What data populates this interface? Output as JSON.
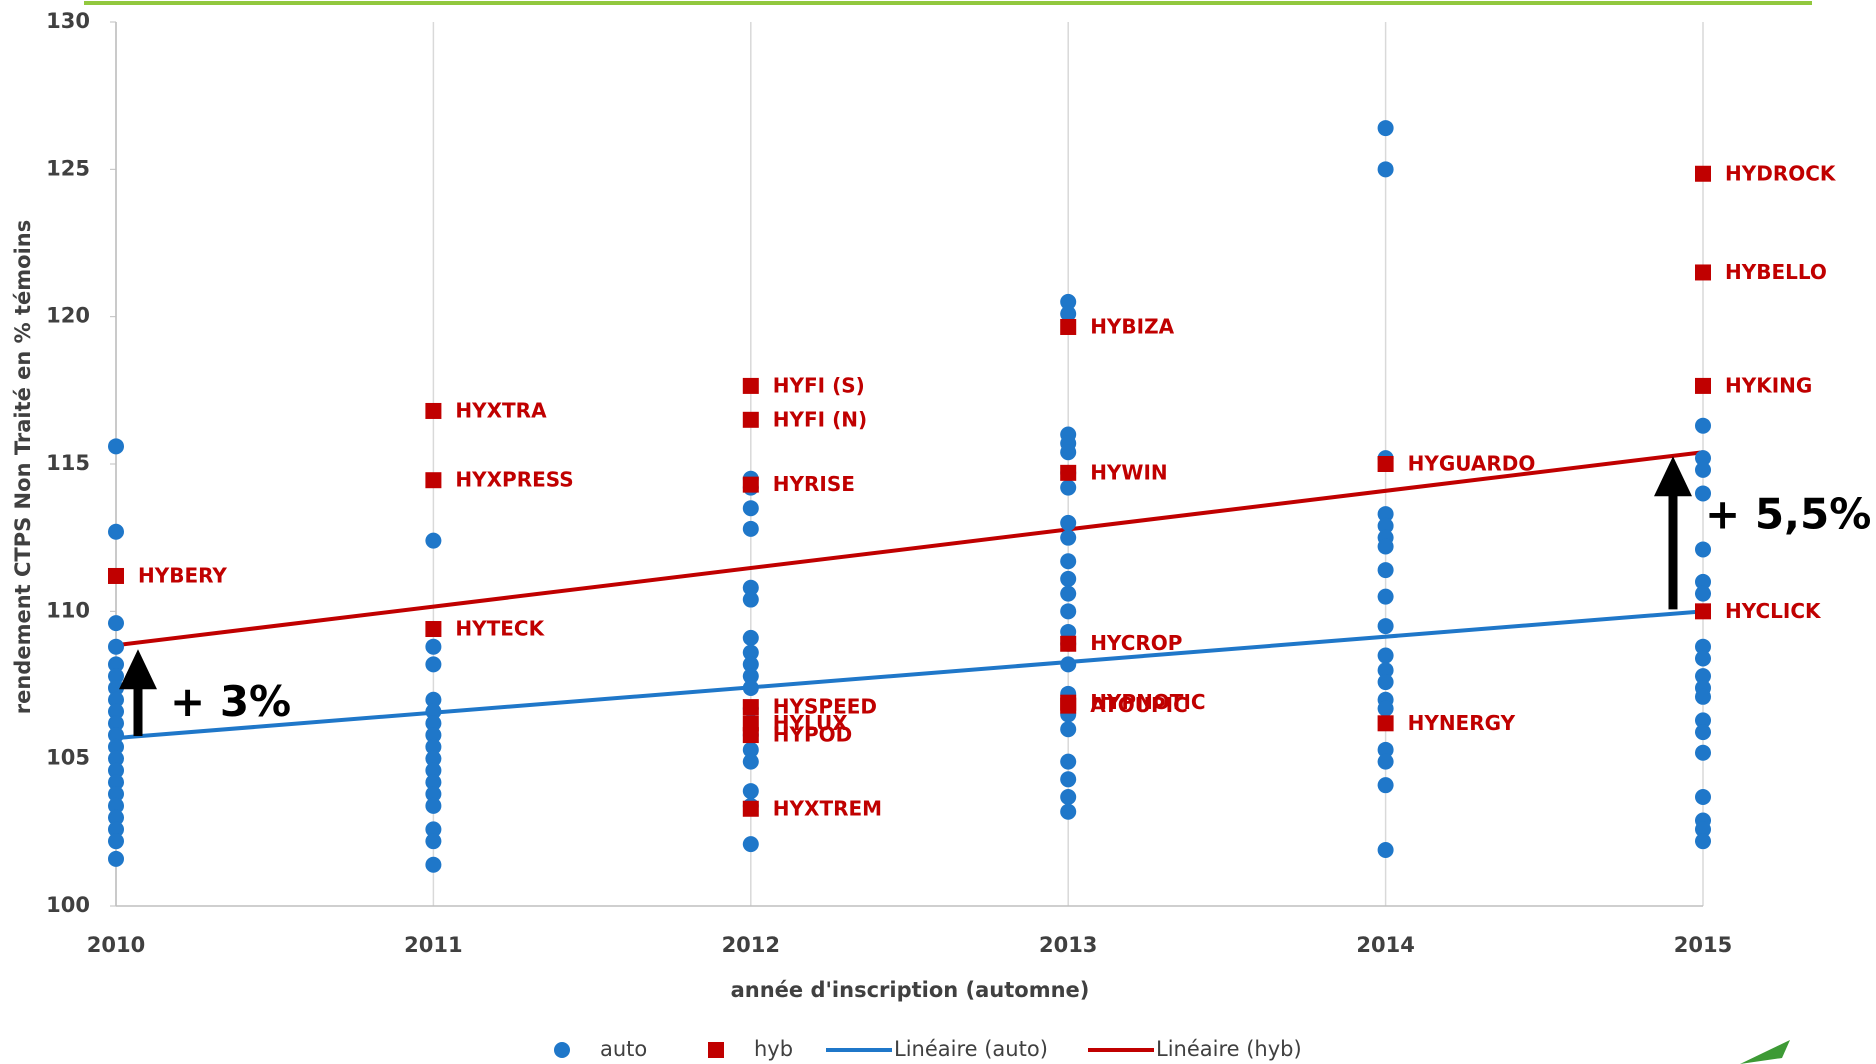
{
  "chart_data": {
    "type": "scatter",
    "xlabel": "année d'inscription (automne)",
    "ylabel": "rendement CTPS Non Traité en % témoins",
    "xlim": [
      2010,
      2015
    ],
    "xticks": [
      2010,
      2011,
      2012,
      2013,
      2014,
      2015
    ],
    "ylim": [
      100,
      130
    ],
    "yticks": [
      100,
      105,
      110,
      115,
      120,
      125,
      130
    ],
    "grid": true,
    "legend": "bottom",
    "series": [
      {
        "name": "auto",
        "color": "#1f77c9",
        "marker": "circle",
        "x": [
          2010,
          2010,
          2010,
          2010,
          2010,
          2010,
          2010,
          2010,
          2010,
          2010,
          2010,
          2010,
          2010,
          2010,
          2010,
          2010,
          2010,
          2010,
          2010,
          2010,
          2010,
          2011,
          2011,
          2011,
          2011,
          2011,
          2011,
          2011,
          2011,
          2011,
          2011,
          2011,
          2011,
          2011,
          2011,
          2011,
          2011,
          2012,
          2012,
          2012,
          2012,
          2012,
          2012,
          2012,
          2012,
          2012,
          2012,
          2012,
          2012,
          2012,
          2012,
          2012,
          2012,
          2012,
          2012,
          2013,
          2013,
          2013,
          2013,
          2013,
          2013,
          2013,
          2013,
          2013,
          2013,
          2013,
          2013,
          2013,
          2013,
          2013,
          2013,
          2013,
          2013,
          2013,
          2013,
          2013,
          2013,
          2013,
          2014,
          2014,
          2014,
          2014,
          2014,
          2014,
          2014,
          2014,
          2014,
          2014,
          2014,
          2014,
          2014,
          2014,
          2014,
          2014,
          2014,
          2014,
          2014,
          2015,
          2015,
          2015,
          2015,
          2015,
          2015,
          2015,
          2015,
          2015,
          2015,
          2015,
          2015,
          2015,
          2015,
          2015,
          2015,
          2015,
          2015,
          2015
        ],
        "values": [
          115.6,
          112.7,
          109.6,
          108.8,
          108.2,
          107.8,
          107.4,
          107.0,
          106.6,
          106.2,
          105.8,
          105.4,
          105.0,
          104.6,
          104.2,
          103.8,
          103.4,
          103.0,
          102.6,
          102.2,
          101.6,
          112.4,
          108.8,
          108.2,
          107.0,
          106.6,
          106.2,
          105.8,
          105.4,
          105.0,
          104.6,
          104.2,
          103.8,
          103.4,
          102.6,
          102.2,
          101.4,
          114.5,
          114.2,
          113.5,
          112.8,
          110.8,
          110.4,
          109.1,
          108.6,
          108.2,
          107.8,
          107.4,
          106.7,
          105.8,
          105.3,
          104.9,
          103.9,
          103.4,
          102.1,
          120.5,
          120.1,
          116.0,
          115.7,
          115.4,
          114.7,
          114.2,
          113.0,
          112.5,
          111.7,
          111.1,
          110.6,
          110.0,
          109.3,
          108.9,
          108.2,
          107.2,
          106.5,
          106.0,
          104.9,
          104.3,
          103.7,
          103.2,
          126.4,
          125.0,
          115.2,
          113.3,
          112.9,
          112.5,
          112.2,
          111.4,
          110.5,
          109.5,
          108.5,
          108.0,
          107.6,
          107.0,
          106.7,
          105.3,
          104.9,
          104.1,
          101.9,
          116.3,
          115.2,
          114.8,
          114.0,
          112.1,
          111.0,
          110.6,
          108.8,
          108.4,
          107.8,
          107.4,
          107.1,
          106.3,
          105.9,
          105.2,
          103.7,
          102.9,
          102.6,
          102.2
        ]
      },
      {
        "name": "hyb",
        "color": "#c00000",
        "marker": "square",
        "x": [
          2010,
          2011,
          2011,
          2011,
          2012,
          2012,
          2012,
          2012,
          2012,
          2012,
          2012,
          2013,
          2013,
          2013,
          2013,
          2013,
          2014,
          2014,
          2015,
          2015,
          2015,
          2015
        ],
        "values": [
          111.2,
          116.8,
          114.45,
          109.4,
          117.65,
          116.5,
          114.3,
          106.75,
          106.2,
          105.8,
          103.3,
          119.65,
          114.7,
          108.9,
          106.9,
          106.8,
          115.0,
          106.2,
          124.85,
          121.5,
          117.65,
          110.0
        ],
        "labels": [
          "HYBERY",
          "HYXTRA",
          "HYXPRESS",
          "HYTECK",
          "HYFI (S)",
          "HYFI (N)",
          "HYRISE",
          "HYSPEED",
          "HYLUX",
          "HYPOD",
          "HYXTREM",
          "HYBIZA",
          "HYWIN",
          "HYCROP",
          "HYPNOTIC",
          "ATOUPIC",
          "HYGUARDO",
          "HYNERGY",
          "HYDROCK",
          "HYBELLO",
          "HYKING",
          "HYCLICK"
        ]
      },
      {
        "name": "Linéaire (auto)",
        "color": "#1f77c9",
        "marker": "line",
        "x": [
          2010,
          2015
        ],
        "values": [
          105.7,
          110.0
        ]
      },
      {
        "name": "Linéaire (hyb)",
        "color": "#c00000",
        "marker": "line",
        "x": [
          2010,
          2015
        ],
        "values": [
          108.85,
          115.4
        ]
      }
    ],
    "annotations": [
      {
        "text": "+ 3%",
        "x": 2010
      },
      {
        "text": "+ 5,5%",
        "x": 2015
      }
    ]
  }
}
